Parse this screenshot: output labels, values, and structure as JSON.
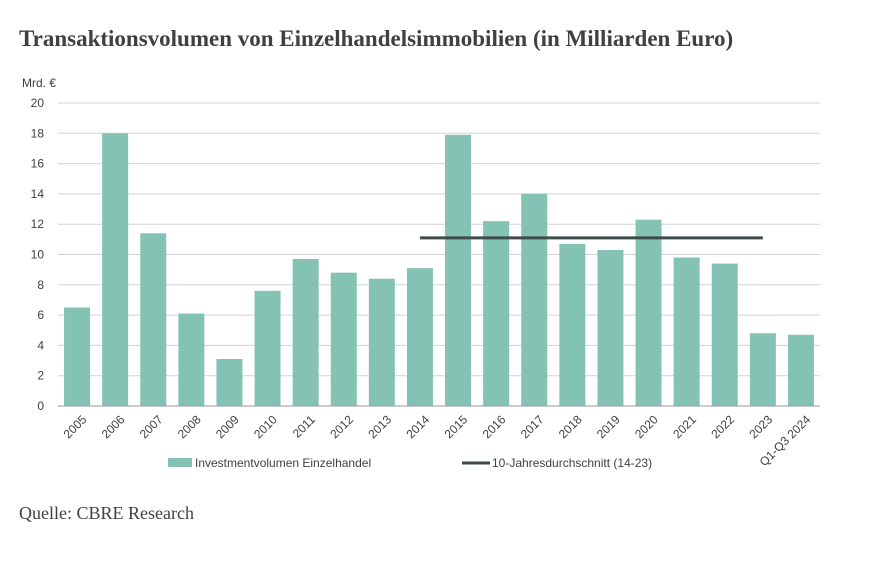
{
  "title": "Transaktionsvolumen von Einzelhandelsimmobilien (in Milliarden Euro)",
  "source": "Quelle: CBRE Research",
  "chart_data": {
    "type": "bar",
    "ylabel": "Mrd. €",
    "ylim": [
      0,
      20
    ],
    "yticks": [
      0,
      2,
      4,
      6,
      8,
      10,
      12,
      14,
      16,
      18,
      20
    ],
    "grid": true,
    "legend_position": "bottom",
    "categories": [
      "2005",
      "2006",
      "2007",
      "2008",
      "2009",
      "2010",
      "2011",
      "2012",
      "2013",
      "2014",
      "2015",
      "2016",
      "2017",
      "2018",
      "2019",
      "2020",
      "2021",
      "2022",
      "2023",
      "Q1-Q3 2024"
    ],
    "series": [
      {
        "name": "Investmentvolumen Einzelhandel",
        "type": "bar",
        "color": "#84c2b4",
        "values": [
          6.5,
          18.0,
          11.4,
          6.1,
          3.1,
          7.6,
          9.7,
          8.8,
          8.4,
          9.1,
          17.9,
          12.2,
          14.0,
          10.7,
          10.3,
          12.3,
          9.8,
          9.4,
          4.8,
          4.7
        ]
      },
      {
        "name": "10-Jahresdurchschnitt (14-23)",
        "type": "line",
        "color": "#3f4a4a",
        "value": 11.1,
        "from": "2014",
        "to": "2023"
      }
    ]
  }
}
